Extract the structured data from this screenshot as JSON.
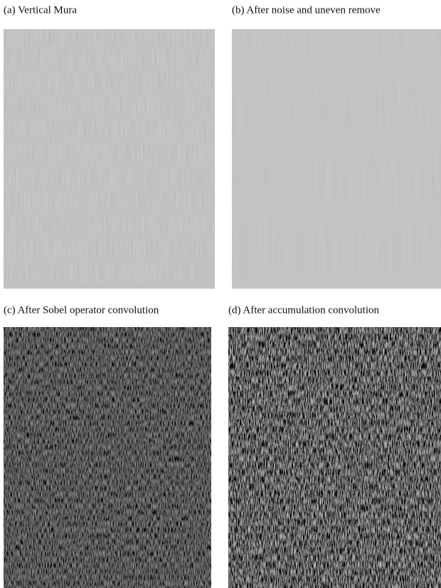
{
  "panels": [
    {
      "caption": "(a) Vertical Mura"
    },
    {
      "caption": "(b) After noise and uneven remove"
    },
    {
      "caption": "(c)  After Sobel operator convolution"
    },
    {
      "caption": "(d) After accumulation convolution"
    }
  ]
}
